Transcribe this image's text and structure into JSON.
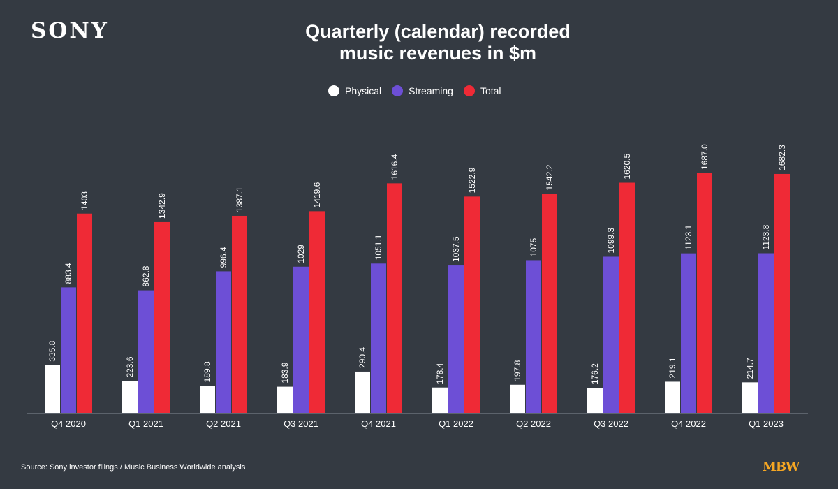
{
  "header": {
    "logo": "SONY",
    "title_line1": "Quarterly (calendar) recorded",
    "title_line2": "music revenues in $m"
  },
  "legend": [
    {
      "name": "Physical",
      "color": "#ffffff"
    },
    {
      "name": "Streaming",
      "color": "#6d4fd6"
    },
    {
      "name": "Total",
      "color": "#ef2a36"
    }
  ],
  "footer": {
    "source": "Source: Sony investor filings / Music Business Worldwide analysis",
    "brand": "MBW"
  },
  "chart_data": {
    "type": "bar",
    "title": "Quarterly (calendar) recorded music revenues in $m",
    "categories": [
      "Q4 2020",
      "Q1 2021",
      "Q2 2021",
      "Q3 2021",
      "Q4 2021",
      "Q1 2022",
      "Q2 2022",
      "Q3 2022",
      "Q4 2022",
      "Q1 2023"
    ],
    "series": [
      {
        "name": "Physical",
        "color": "#ffffff",
        "values": [
          335.8,
          223.6,
          189.8,
          183.9,
          290.4,
          178.4,
          197.8,
          176.2,
          219.1,
          214.7
        ]
      },
      {
        "name": "Streaming",
        "color": "#6d4fd6",
        "values": [
          883.4,
          862.8,
          996.4,
          1029,
          1051.1,
          1037.5,
          1075,
          1099.3,
          1123.1,
          1123.8
        ]
      },
      {
        "name": "Total",
        "color": "#ef2a36",
        "values": [
          1403,
          1342.9,
          1387.1,
          1419.6,
          1616.4,
          1522.9,
          1542.2,
          1620.5,
          1687.0,
          1682.3
        ]
      }
    ],
    "value_labels": [
      [
        "335.8",
        "223.6",
        "189.8",
        "183.9",
        "290.4",
        "178.4",
        "197.8",
        "176.2",
        "219.1",
        "214.7"
      ],
      [
        "883.4",
        "862.8",
        "996.4",
        "1029",
        "1051.1",
        "1037.5",
        "1075",
        "1099.3",
        "1123.1",
        "1123.8"
      ],
      [
        "1403",
        "1342.9",
        "1387.1",
        "1419.6",
        "1616.4",
        "1522.9",
        "1542.2",
        "1620.5",
        "1687.0",
        "1682.3"
      ]
    ],
    "ylim": [
      0,
      1687.0
    ],
    "grid": false,
    "legend_position": "top-center"
  }
}
